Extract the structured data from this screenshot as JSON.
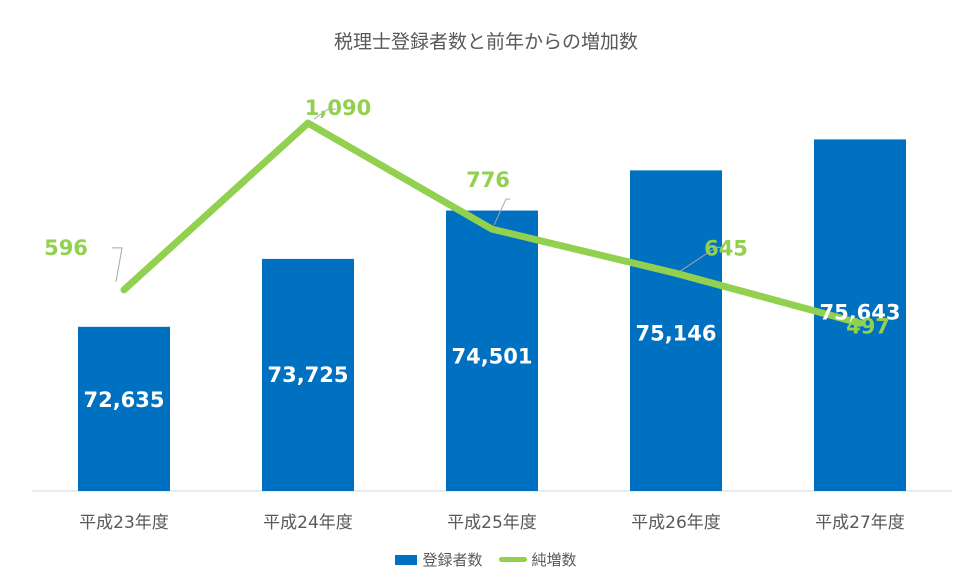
{
  "chart_data": {
    "type": "bar",
    "title": "税理士登録者数と前年からの増加数",
    "categories": [
      "平成23年度",
      "平成24年度",
      "平成25年度",
      "平成26年度",
      "平成27年度"
    ],
    "series": [
      {
        "name": "登録者数",
        "type": "bar",
        "values": [
          72635,
          73725,
          74501,
          75146,
          75643
        ],
        "labels": [
          "72,635",
          "73,725",
          "74,501",
          "75,146",
          "75,643"
        ],
        "color": "#0070c0",
        "axis": "primary",
        "ylim": [
          70000,
          76500
        ]
      },
      {
        "name": "純増数",
        "type": "line",
        "values": [
          596,
          1090,
          776,
          645,
          497
        ],
        "labels": [
          "596",
          "1,090",
          "776",
          "645",
          "497"
        ],
        "color": "#92d050",
        "axis": "secondary",
        "ylim": [
          0,
          1200
        ]
      }
    ],
    "legend": "bottom",
    "grid": false
  }
}
